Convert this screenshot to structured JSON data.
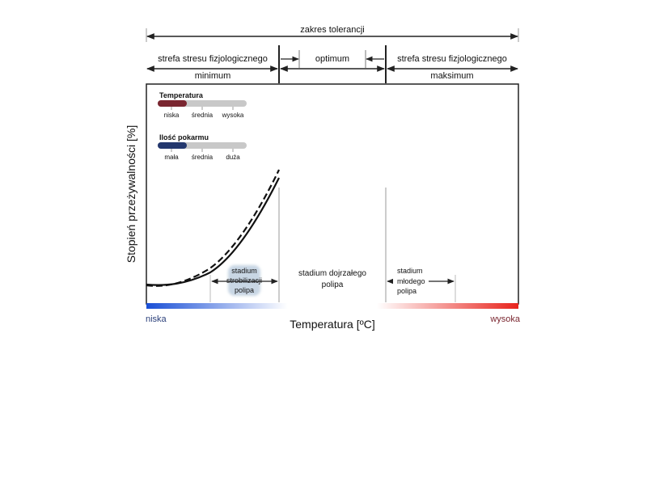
{
  "header": {
    "tolerance_range": "zakres tolerancji",
    "stress_zone_left": "strefa stresu fizjologicznego",
    "optimum": "optimum",
    "stress_zone_right": "strefa stresu fizjologicznego",
    "minimum": "minimum",
    "maximum": "maksimum"
  },
  "legend": {
    "temperature": {
      "title": "Temperatura",
      "levels": [
        "niska",
        "średnia",
        "wysoka"
      ],
      "fill_fraction": 0.33,
      "color": "#7a2630"
    },
    "food": {
      "title": "Ilość pokarmu",
      "levels": [
        "mała",
        "średnia",
        "duża"
      ],
      "fill_fraction": 0.33,
      "color": "#24386e"
    }
  },
  "axes": {
    "ylabel": "Stopień przeżywalności [%]",
    "xlabel": "Temperatura [ºC]",
    "x_low": "niska",
    "x_high": "wysoka"
  },
  "stages": {
    "strobilation": [
      "stadium",
      "strobilizacji",
      "polipa"
    ],
    "mature": [
      "stadium dojrzałego",
      "polipa"
    ],
    "young": [
      "stadium",
      "młodego",
      "polipa"
    ]
  },
  "colors": {
    "cold": "#1a4fd6",
    "hot": "#e8231c",
    "frame": "#222222",
    "track": "#c8c8c8",
    "strobilation_bg": "#c8d6e4"
  }
}
